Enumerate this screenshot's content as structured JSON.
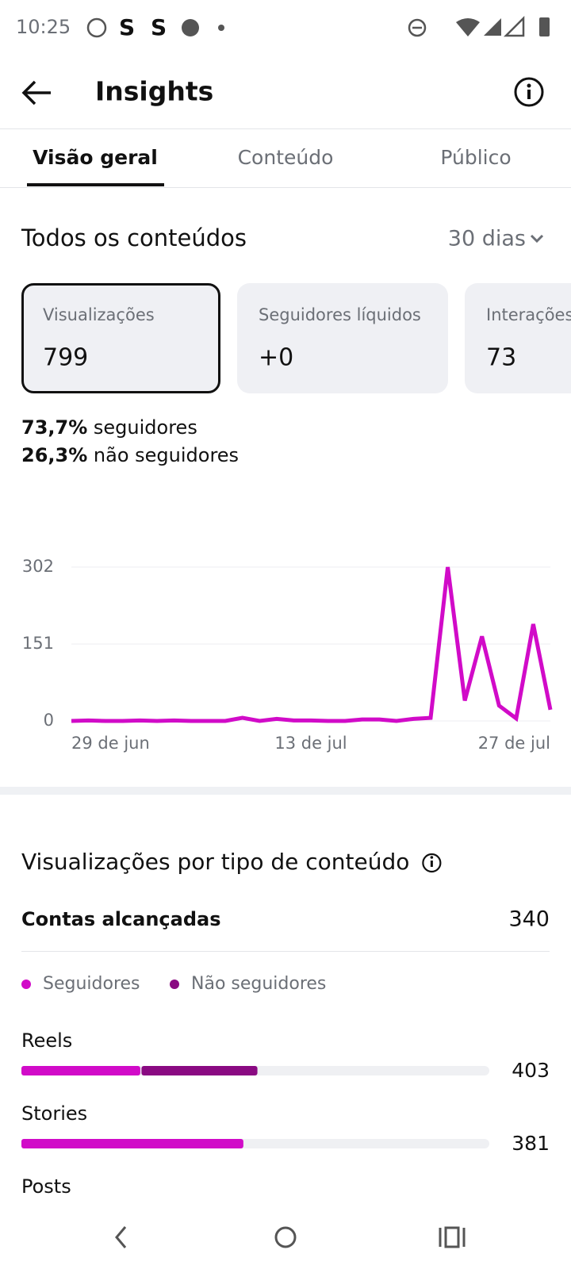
{
  "status_bar": {
    "time": "10:25"
  },
  "header": {
    "title": "Insights"
  },
  "tabs": [
    "Visão geral",
    "Conteúdo",
    "Público"
  ],
  "section": {
    "title": "Todos os conteúdos",
    "period": "30 dias"
  },
  "cards": [
    {
      "label": "Visualizações",
      "value": "799"
    },
    {
      "label": "Seguidores líquidos",
      "value": "+0"
    },
    {
      "label": "Interações",
      "value": "73"
    }
  ],
  "audience": [
    {
      "share": "73,7%",
      "label": "seguidores"
    },
    {
      "share": "26,3%",
      "label": "não seguidores"
    }
  ],
  "chart_data": [
    {
      "type": "line",
      "categories": [
        "29 de jun",
        null,
        null,
        null,
        null,
        null,
        null,
        null,
        null,
        null,
        null,
        null,
        null,
        null,
        "13 de jul",
        null,
        null,
        null,
        null,
        null,
        null,
        null,
        null,
        null,
        null,
        null,
        null,
        null,
        "27 de jul"
      ],
      "series": [
        {
          "color": "#d10bc8",
          "values": [
            0,
            1,
            0,
            0,
            1,
            0,
            1,
            0,
            0,
            0,
            6,
            0,
            4,
            1,
            1,
            0,
            0,
            3,
            3,
            0,
            4,
            6,
            302,
            40,
            166,
            30,
            5,
            190,
            22
          ]
        }
      ],
      "ylim": [
        0,
        302
      ],
      "yticks": [
        0,
        151,
        302
      ],
      "grid": true
    },
    {
      "type": "stacked-hbar",
      "title": "Visualizações por tipo de conteúdo",
      "reach_label": "Contas alcançadas",
      "reach_value": 340,
      "categories": [
        "Reels",
        "Stories"
      ],
      "series": [
        {
          "name": "Seguidores",
          "color": "#d10bc8",
          "values": [
            203,
            379
          ]
        },
        {
          "name": "Não seguidores",
          "color": "#8a0a82",
          "values": [
            200,
            2
          ]
        }
      ],
      "totals": [
        403,
        381
      ],
      "xlim": [
        0,
        799
      ],
      "more_category": "Posts"
    }
  ]
}
